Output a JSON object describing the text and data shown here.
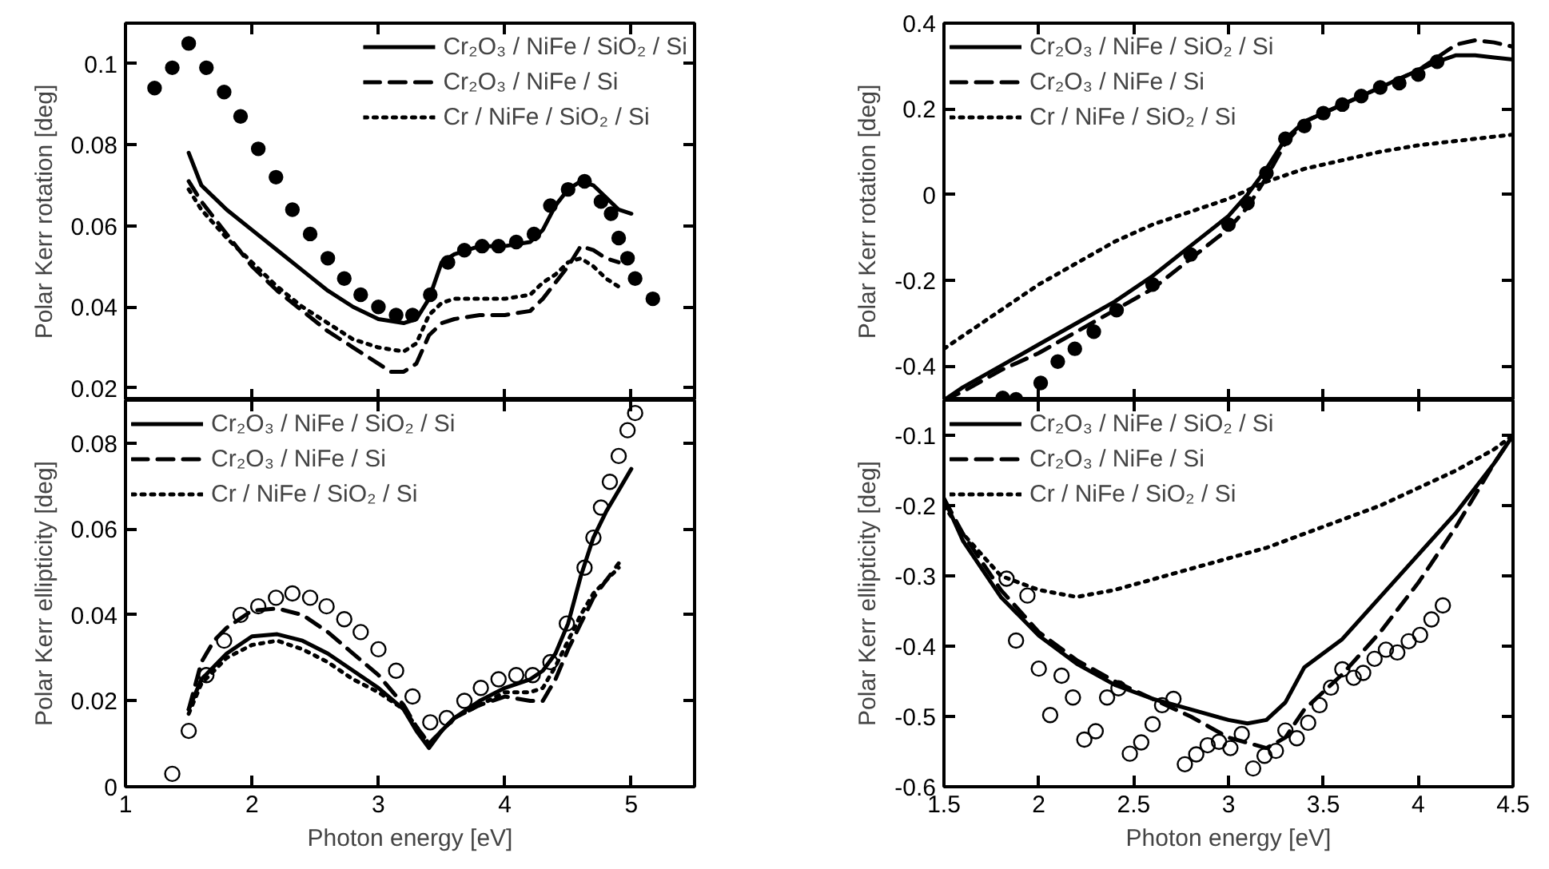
{
  "chart_data": [
    {
      "type": "line",
      "ylabel": "Polar Kerr rotation [deg]",
      "xlim": [
        1,
        5.5
      ],
      "ylim": [
        0.017,
        0.11
      ],
      "xticks": [
        1,
        2,
        3,
        4,
        5
      ],
      "yticks": [
        0.02,
        0.04,
        0.06,
        0.08,
        0.1
      ],
      "tick_labels": "y",
      "legend": "top right",
      "grid": false,
      "series": [
        {
          "name": "Cr₂O₃ / NiFe / SiO₂ / Si",
          "color": "#000000",
          "line_style": "solid",
          "x": [
            1.5,
            1.6,
            1.8,
            2.0,
            2.2,
            2.4,
            2.6,
            2.8,
            3.0,
            3.2,
            3.3,
            3.4,
            3.5,
            3.6,
            3.8,
            4.0,
            4.2,
            4.3,
            4.4,
            4.5,
            4.6,
            4.7,
            4.8,
            4.9,
            5.0
          ],
          "values": [
            0.078,
            0.07,
            0.064,
            0.059,
            0.054,
            0.049,
            0.044,
            0.04,
            0.037,
            0.036,
            0.037,
            0.042,
            0.051,
            0.053,
            0.055,
            0.055,
            0.056,
            0.059,
            0.065,
            0.069,
            0.071,
            0.07,
            0.067,
            0.064,
            0.063
          ]
        },
        {
          "name": "Cr₂O₃ / NiFe / Si",
          "color": "#000000",
          "line_style": "dashed",
          "x": [
            1.5,
            1.6,
            1.8,
            2.0,
            2.2,
            2.4,
            2.6,
            2.8,
            3.0,
            3.1,
            3.2,
            3.3,
            3.4,
            3.5,
            3.6,
            3.8,
            4.0,
            4.2,
            4.3,
            4.4,
            4.5,
            4.6,
            4.7,
            4.8,
            4.9
          ],
          "values": [
            0.071,
            0.066,
            0.058,
            0.05,
            0.044,
            0.039,
            0.034,
            0.03,
            0.026,
            0.024,
            0.024,
            0.026,
            0.033,
            0.036,
            0.037,
            0.038,
            0.038,
            0.039,
            0.042,
            0.046,
            0.05,
            0.055,
            0.054,
            0.052,
            0.051
          ]
        },
        {
          "name": "Cr / NiFe / SiO₂ / Si",
          "color": "#000000",
          "line_style": "dotted",
          "x": [
            1.5,
            1.6,
            1.8,
            2.0,
            2.2,
            2.4,
            2.6,
            2.8,
            3.0,
            3.2,
            3.3,
            3.4,
            3.5,
            3.6,
            3.8,
            4.0,
            4.2,
            4.3,
            4.4,
            4.5,
            4.6,
            4.7,
            4.8,
            4.9
          ],
          "values": [
            0.069,
            0.064,
            0.057,
            0.051,
            0.045,
            0.04,
            0.036,
            0.032,
            0.03,
            0.029,
            0.031,
            0.038,
            0.041,
            0.042,
            0.042,
            0.042,
            0.043,
            0.046,
            0.048,
            0.051,
            0.052,
            0.05,
            0.047,
            0.045
          ]
        },
        {
          "type": "scatter",
          "marker": "circle",
          "color": "#000000",
          "x": [
            1.23,
            1.37,
            1.5,
            1.64,
            1.78,
            1.91,
            2.05,
            2.19,
            2.32,
            2.46,
            2.6,
            2.73,
            2.86,
            3.0,
            3.14,
            3.27,
            3.41,
            3.55,
            3.68,
            3.82,
            3.95,
            4.09,
            4.23,
            4.36,
            4.5,
            4.63,
            4.76,
            4.84,
            4.9,
            4.97,
            5.03,
            5.17
          ],
          "values": [
            0.094,
            0.099,
            0.105,
            0.099,
            0.093,
            0.087,
            0.079,
            0.072,
            0.064,
            0.058,
            0.052,
            0.047,
            0.043,
            0.04,
            0.038,
            0.038,
            0.043,
            0.051,
            0.054,
            0.055,
            0.055,
            0.056,
            0.058,
            0.065,
            0.069,
            0.071,
            0.066,
            0.063,
            0.057,
            0.052,
            0.047,
            0.042
          ]
        }
      ]
    },
    {
      "type": "line",
      "ylabel": "Polar Kerr rotation [deg]",
      "xlim": [
        1.5,
        4.5
      ],
      "ylim": [
        -0.48,
        0.4
      ],
      "xticks": [
        1.5,
        2,
        2.5,
        3,
        3.5,
        4,
        4.5
      ],
      "yticks": [
        -0.4,
        -0.2,
        0,
        0.2,
        0.4
      ],
      "tick_labels": "y",
      "legend": "top left",
      "grid": false,
      "series": [
        {
          "name": "Cr₂O₃ / NiFe / SiO₂ / Si",
          "color": "#000000",
          "line_style": "solid",
          "x": [
            1.5,
            1.6,
            1.8,
            2.0,
            2.2,
            2.4,
            2.6,
            2.8,
            3.0,
            3.1,
            3.2,
            3.3,
            3.4,
            3.5,
            3.6,
            3.8,
            4.0,
            4.1,
            4.2,
            4.3,
            4.4,
            4.5
          ],
          "values": [
            -0.48,
            -0.45,
            -0.4,
            -0.35,
            -0.3,
            -0.25,
            -0.19,
            -0.12,
            -0.05,
            0.0,
            0.06,
            0.13,
            0.17,
            0.19,
            0.21,
            0.25,
            0.29,
            0.31,
            0.325,
            0.325,
            0.32,
            0.315
          ]
        },
        {
          "name": "Cr₂O₃ / NiFe / Si",
          "color": "#000000",
          "line_style": "dashed",
          "x": [
            1.5,
            1.6,
            1.8,
            2.0,
            2.2,
            2.4,
            2.6,
            2.8,
            3.0,
            3.1,
            3.2,
            3.3,
            3.4,
            3.5,
            3.6,
            3.8,
            4.0,
            4.1,
            4.2,
            4.3,
            4.4,
            4.5
          ],
          "values": [
            -0.48,
            -0.46,
            -0.41,
            -0.37,
            -0.32,
            -0.27,
            -0.22,
            -0.15,
            -0.08,
            -0.03,
            0.04,
            0.12,
            0.17,
            0.19,
            0.21,
            0.25,
            0.29,
            0.32,
            0.35,
            0.36,
            0.355,
            0.345
          ]
        },
        {
          "name": "Cr / NiFe / SiO₂ / Si",
          "color": "#000000",
          "line_style": "dotted",
          "x": [
            1.5,
            1.6,
            1.8,
            2.0,
            2.2,
            2.4,
            2.6,
            2.8,
            3.0,
            3.2,
            3.4,
            3.6,
            3.8,
            4.0,
            4.2,
            4.4,
            4.5
          ],
          "values": [
            -0.36,
            -0.33,
            -0.27,
            -0.21,
            -0.16,
            -0.11,
            -0.07,
            -0.04,
            -0.01,
            0.03,
            0.06,
            0.08,
            0.1,
            0.115,
            0.125,
            0.135,
            0.14
          ]
        },
        {
          "type": "scatter",
          "marker": "circle",
          "color": "#000000",
          "x": [
            1.81,
            1.88,
            2.01,
            2.1,
            2.19,
            2.29,
            2.41,
            2.6,
            2.8,
            3.0,
            3.1,
            3.2,
            3.3,
            3.4,
            3.5,
            3.6,
            3.7,
            3.8,
            3.9,
            4.0,
            4.1
          ],
          "values": [
            -0.475,
            -0.478,
            -0.44,
            -0.39,
            -0.36,
            -0.32,
            -0.27,
            -0.21,
            -0.14,
            -0.07,
            -0.02,
            0.05,
            0.13,
            0.16,
            0.19,
            0.21,
            0.23,
            0.25,
            0.26,
            0.28,
            0.31
          ]
        }
      ]
    },
    {
      "type": "line",
      "xlabel": "Photon energy [eV]",
      "ylabel": "Polar Kerr ellipticity [deg]",
      "xlim": [
        1,
        5.5
      ],
      "ylim": [
        0,
        0.09
      ],
      "xticks": [
        1,
        2,
        3,
        4,
        5
      ],
      "yticks": [
        0,
        0.02,
        0.04,
        0.06,
        0.08
      ],
      "legend": "top left",
      "grid": false,
      "series": [
        {
          "name": "Cr₂O₃ / NiFe / SiO₂ / Si",
          "color": "#000000",
          "line_style": "solid",
          "x": [
            1.5,
            1.6,
            1.8,
            2.0,
            2.2,
            2.4,
            2.6,
            2.8,
            3.0,
            3.2,
            3.3,
            3.4,
            3.5,
            3.6,
            3.8,
            4.0,
            4.2,
            4.3,
            4.4,
            4.5,
            4.6,
            4.7,
            4.8,
            4.9,
            5.0
          ],
          "values": [
            0.018,
            0.025,
            0.031,
            0.035,
            0.0355,
            0.034,
            0.031,
            0.027,
            0.023,
            0.018,
            0.013,
            0.009,
            0.013,
            0.016,
            0.02,
            0.023,
            0.025,
            0.027,
            0.031,
            0.038,
            0.049,
            0.058,
            0.064,
            0.069,
            0.074
          ]
        },
        {
          "name": "Cr₂O₃ / NiFe / Si",
          "color": "#000000",
          "line_style": "dashed",
          "x": [
            1.5,
            1.6,
            1.7,
            1.8,
            2.0,
            2.2,
            2.4,
            2.6,
            2.8,
            3.0,
            3.2,
            3.3,
            3.4,
            3.5,
            3.6,
            3.8,
            4.0,
            4.2,
            4.3,
            4.4,
            4.5,
            4.6,
            4.7,
            4.8,
            4.9
          ],
          "values": [
            0.018,
            0.029,
            0.034,
            0.037,
            0.041,
            0.0415,
            0.04,
            0.036,
            0.031,
            0.026,
            0.019,
            0.014,
            0.01,
            0.013,
            0.016,
            0.019,
            0.021,
            0.02,
            0.02,
            0.025,
            0.032,
            0.038,
            0.044,
            0.048,
            0.052
          ]
        },
        {
          "name": "Cr / NiFe / SiO₂ / Si",
          "color": "#000000",
          "line_style": "dotted",
          "x": [
            1.5,
            1.6,
            1.8,
            2.0,
            2.2,
            2.4,
            2.6,
            2.8,
            3.0,
            3.2,
            3.3,
            3.4,
            3.5,
            3.6,
            3.8,
            4.0,
            4.2,
            4.3,
            4.4,
            4.5,
            4.6,
            4.7,
            4.8,
            4.9
          ],
          "values": [
            0.017,
            0.024,
            0.03,
            0.033,
            0.034,
            0.032,
            0.029,
            0.025,
            0.022,
            0.018,
            0.014,
            0.01,
            0.013,
            0.016,
            0.019,
            0.022,
            0.022,
            0.023,
            0.028,
            0.034,
            0.04,
            0.045,
            0.048,
            0.051
          ]
        },
        {
          "type": "scatter",
          "marker": "circle_open",
          "color": "#000000",
          "x": [
            1.37,
            1.5,
            1.64,
            1.78,
            1.91,
            2.05,
            2.19,
            2.32,
            2.46,
            2.59,
            2.73,
            2.86,
            3.0,
            3.14,
            3.27,
            3.41,
            3.54,
            3.68,
            3.81,
            3.95,
            4.09,
            4.22,
            4.36,
            4.49,
            4.63,
            4.7,
            4.76,
            4.83,
            4.9,
            4.97,
            5.03
          ],
          "values": [
            0.003,
            0.013,
            0.026,
            0.034,
            0.04,
            0.042,
            0.044,
            0.045,
            0.044,
            0.042,
            0.039,
            0.036,
            0.032,
            0.027,
            0.021,
            0.015,
            0.016,
            0.02,
            0.023,
            0.025,
            0.026,
            0.026,
            0.029,
            0.038,
            0.051,
            0.058,
            0.065,
            0.071,
            0.077,
            0.083,
            0.087
          ]
        }
      ]
    },
    {
      "type": "line",
      "xlabel": "Photon energy [eV]",
      "ylabel": "Polar Kerr ellipticity [deg]",
      "xlim": [
        1.5,
        4.5
      ],
      "ylim": [
        -0.6,
        -0.05
      ],
      "xticks": [
        1.5,
        2,
        2.5,
        3,
        3.5,
        4,
        4.5
      ],
      "yticks": [
        -0.6,
        -0.5,
        -0.4,
        -0.3,
        -0.2,
        -0.1
      ],
      "legend": "top left",
      "grid": false,
      "series": [
        {
          "name": "Cr₂O₃ / NiFe / SiO₂ / Si",
          "color": "#000000",
          "line_style": "solid",
          "x": [
            1.5,
            1.6,
            1.8,
            2.0,
            2.2,
            2.4,
            2.6,
            2.8,
            3.0,
            3.1,
            3.2,
            3.3,
            3.4,
            3.6,
            3.8,
            4.0,
            4.2,
            4.4,
            4.5
          ],
          "values": [
            -0.19,
            -0.25,
            -0.33,
            -0.385,
            -0.425,
            -0.455,
            -0.475,
            -0.49,
            -0.505,
            -0.51,
            -0.505,
            -0.48,
            -0.43,
            -0.39,
            -0.33,
            -0.27,
            -0.21,
            -0.14,
            -0.1
          ]
        },
        {
          "name": "Cr₂O₃ / NiFe / Si",
          "color": "#000000",
          "line_style": "dashed",
          "x": [
            1.5,
            1.6,
            1.8,
            2.0,
            2.2,
            2.4,
            2.6,
            2.8,
            3.0,
            3.2,
            3.3,
            3.4,
            3.6,
            3.8,
            4.0,
            4.2,
            4.4,
            4.5
          ],
          "values": [
            -0.19,
            -0.24,
            -0.32,
            -0.38,
            -0.42,
            -0.45,
            -0.475,
            -0.5,
            -0.53,
            -0.545,
            -0.53,
            -0.49,
            -0.44,
            -0.38,
            -0.31,
            -0.23,
            -0.14,
            -0.1
          ]
        },
        {
          "name": "Cr / NiFe / SiO₂ / Si",
          "color": "#000000",
          "line_style": "dotted",
          "x": [
            1.5,
            1.6,
            1.8,
            2.0,
            2.2,
            2.4,
            2.6,
            2.8,
            3.0,
            3.2,
            3.4,
            3.6,
            3.8,
            4.0,
            4.2,
            4.4,
            4.5
          ],
          "values": [
            -0.2,
            -0.24,
            -0.3,
            -0.32,
            -0.33,
            -0.32,
            -0.305,
            -0.29,
            -0.275,
            -0.26,
            -0.24,
            -0.22,
            -0.2,
            -0.175,
            -0.15,
            -0.12,
            -0.1
          ]
        },
        {
          "type": "scatter",
          "marker": "circle_open",
          "color": "#000000",
          "x": [
            1.83,
            1.94,
            1.88,
            2.0,
            2.06,
            2.12,
            2.18,
            2.24,
            2.3,
            2.36,
            2.42,
            2.48,
            2.54,
            2.6,
            2.65,
            2.71,
            2.77,
            2.83,
            2.89,
            2.95,
            3.01,
            3.07,
            3.13,
            3.19,
            3.25,
            3.3,
            3.36,
            3.42,
            3.48,
            3.54,
            3.6,
            3.66,
            3.71,
            3.77,
            3.83,
            3.89,
            3.95,
            4.01,
            4.07,
            4.13
          ],
          "values": [
            -0.304,
            -0.328,
            -0.392,
            -0.432,
            -0.498,
            -0.442,
            -0.473,
            -0.533,
            -0.521,
            -0.473,
            -0.46,
            -0.553,
            -0.537,
            -0.511,
            -0.484,
            -0.475,
            -0.568,
            -0.554,
            -0.541,
            -0.536,
            -0.545,
            -0.525,
            -0.574,
            -0.556,
            -0.549,
            -0.52,
            -0.531,
            -0.509,
            -0.484,
            -0.459,
            -0.433,
            -0.445,
            -0.438,
            -0.418,
            -0.405,
            -0.409,
            -0.393,
            -0.384,
            -0.362,
            -0.342
          ]
        }
      ]
    }
  ]
}
